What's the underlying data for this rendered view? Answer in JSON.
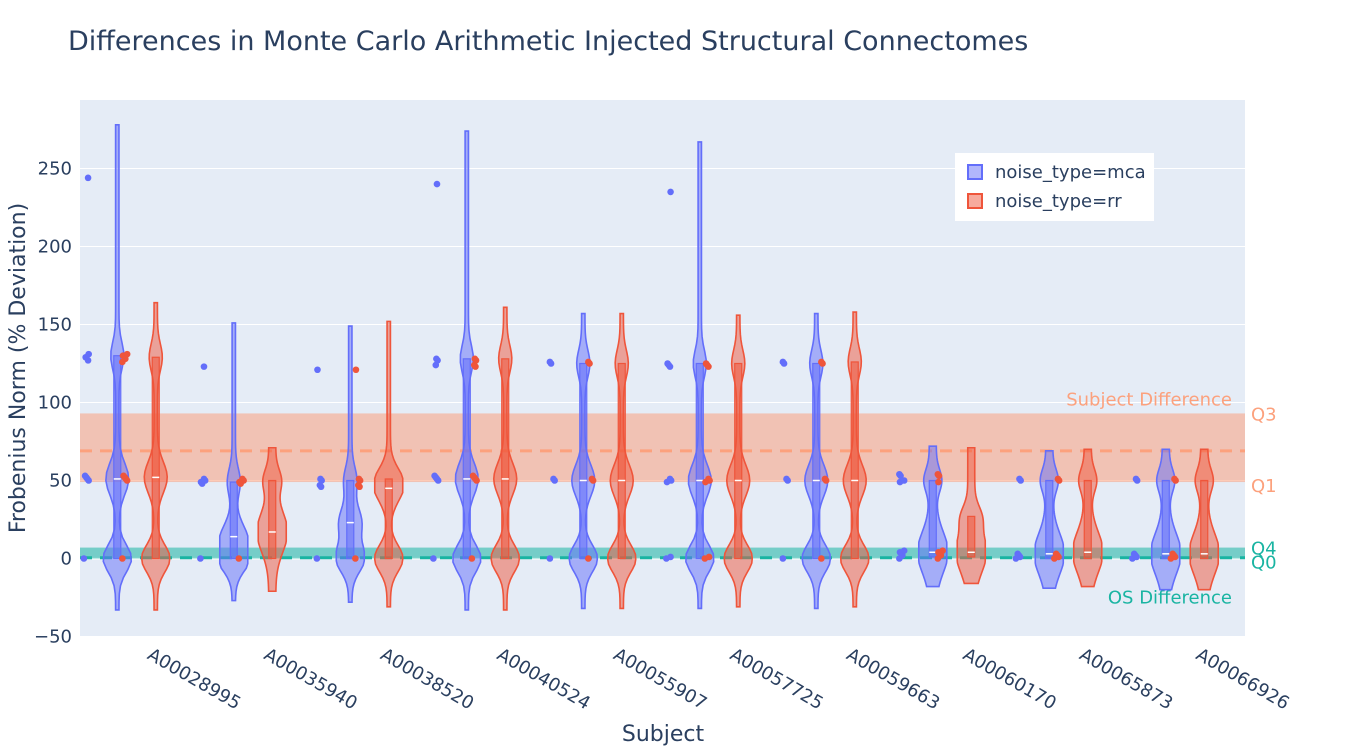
{
  "chart_data": {
    "type": "violin",
    "title": "Differences in Monte Carlo Arithmetic Injected Structural Connectomes",
    "xlabel": "Subject",
    "ylabel": "Frobenius Norm (% Deviation)",
    "ylim": [
      -50,
      285
    ],
    "yticks": [
      -50,
      0,
      50,
      100,
      150,
      200,
      250
    ],
    "grid": true,
    "legend_position": "top-right",
    "categories": [
      "A00028995",
      "A00035940",
      "A00038520",
      "A00040524",
      "A00055907",
      "A00057725",
      "A00059663",
      "A00060170",
      "A00065873",
      "A00066926"
    ],
    "series": [
      {
        "name": "noise_type=mca",
        "color": "#636efa",
        "violins": [
          {
            "min": -33,
            "max": 278,
            "q1": 0,
            "median": 51,
            "q3": 130,
            "points": [
              0,
              50,
              51,
              52,
              53,
              127,
              129,
              131,
              244
            ]
          },
          {
            "min": -27,
            "max": 151,
            "q1": 0,
            "median": 14,
            "q3": 49,
            "points": [
              0,
              48,
              49,
              50,
              51,
              123
            ]
          },
          {
            "min": -28,
            "max": 149,
            "q1": 0,
            "median": 23,
            "q3": 50,
            "points": [
              0,
              46,
              47,
              50,
              51,
              121
            ]
          },
          {
            "min": -33,
            "max": 274,
            "q1": 0,
            "median": 51,
            "q3": 128,
            "points": [
              0,
              50,
              51,
              52,
              53,
              124,
              127,
              128,
              240
            ]
          },
          {
            "min": -32,
            "max": 157,
            "q1": 0,
            "median": 50,
            "q3": 125,
            "points": [
              0,
              50,
              51,
              125,
              126
            ]
          },
          {
            "min": -32,
            "max": 267,
            "q1": 0,
            "median": 50,
            "q3": 125,
            "points": [
              0,
              1,
              49,
              50,
              51,
              123,
              124,
              125,
              235
            ]
          },
          {
            "min": -32,
            "max": 157,
            "q1": 0,
            "median": 50,
            "q3": 125,
            "points": [
              0,
              50,
              51,
              125,
              126
            ]
          },
          {
            "min": -18,
            "max": 72,
            "q1": 1,
            "median": 4,
            "q3": 50,
            "points": [
              0,
              2,
              4,
              5,
              49,
              50,
              53,
              54
            ]
          },
          {
            "min": -19,
            "max": 69,
            "q1": 0,
            "median": 3,
            "q3": 50,
            "points": [
              0,
              1,
              2,
              3,
              50,
              51
            ]
          },
          {
            "min": -20,
            "max": 70,
            "q1": 0,
            "median": 3,
            "q3": 50,
            "points": [
              0,
              1,
              2,
              3,
              50,
              51
            ]
          }
        ]
      },
      {
        "name": "noise_type=rr",
        "color": "#ef553b",
        "violins": [
          {
            "min": -33,
            "max": 164,
            "q1": 0,
            "median": 52,
            "q3": 129,
            "points": [
              0,
              50,
              51,
              52,
              53,
              126,
              128,
              130,
              131
            ]
          },
          {
            "min": -21,
            "max": 71,
            "q1": 0,
            "median": 17,
            "q3": 50,
            "points": [
              0,
              48,
              49,
              50,
              51
            ]
          },
          {
            "min": -31,
            "max": 152,
            "q1": 0,
            "median": 45,
            "q3": 51,
            "points": [
              0,
              46,
              47,
              50,
              51,
              121
            ]
          },
          {
            "min": -33,
            "max": 161,
            "q1": 0,
            "median": 51,
            "q3": 128,
            "points": [
              0,
              50,
              51,
              52,
              53,
              123,
              124,
              127,
              128
            ]
          },
          {
            "min": -32,
            "max": 157,
            "q1": 0,
            "median": 50,
            "q3": 125,
            "points": [
              0,
              50,
              51,
              125,
              126
            ]
          },
          {
            "min": -31,
            "max": 156,
            "q1": 0,
            "median": 50,
            "q3": 125,
            "points": [
              0,
              1,
              49,
              50,
              51,
              123,
              124,
              125
            ]
          },
          {
            "min": -31,
            "max": 158,
            "q1": 0,
            "median": 50,
            "q3": 126,
            "points": [
              0,
              50,
              51,
              125,
              126
            ]
          },
          {
            "min": -16,
            "max": 71,
            "q1": 1,
            "median": 4,
            "q3": 27,
            "points": [
              0,
              2,
              3,
              4,
              5,
              49,
              53,
              54
            ]
          },
          {
            "min": -18,
            "max": 70,
            "q1": 0,
            "median": 4,
            "q3": 50,
            "points": [
              0,
              1,
              2,
              3,
              50,
              51
            ]
          },
          {
            "min": -20,
            "max": 70,
            "q1": 0,
            "median": 3,
            "q3": 50,
            "points": [
              0,
              1,
              2,
              3,
              50,
              51
            ]
          }
        ]
      }
    ],
    "reference_bands": [
      {
        "name": "Subject Difference",
        "color": "#fca17d",
        "low": 49,
        "high": 93,
        "line": 69,
        "low_label": "Q1",
        "high_label": "Q3"
      },
      {
        "name": "OS Difference",
        "color": "#19b4a2",
        "low": 0,
        "high": 7,
        "line": 0.5,
        "low_label": "Q0",
        "high_label": "Q4"
      }
    ]
  }
}
